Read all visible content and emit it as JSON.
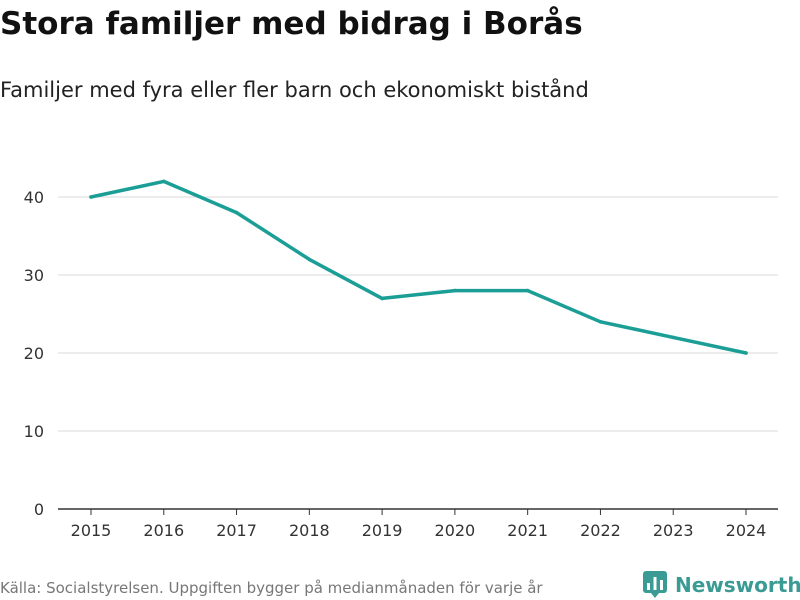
{
  "header": {
    "title": "Stora familjer med bidrag i Borås",
    "subtitle": "Familjer med fyra eller fler barn och ekonomiskt bistånd"
  },
  "footer": {
    "source": "Källa: Socialstyrelsen. Uppgiften bygger på medianmånaden för varje år",
    "brand": "Newsworthy",
    "brand_icon": "bar-chart-speech-bubble-icon"
  },
  "colors": {
    "line": "#1a9e96",
    "grid": "#d9d9d9",
    "axis": "#333333",
    "brand": "#3a9a94"
  },
  "chart_data": {
    "type": "line",
    "title": "Stora familjer med bidrag i Borås",
    "subtitle": "Familjer med fyra eller fler barn och ekonomiskt bistånd",
    "xlabel": "",
    "ylabel": "",
    "x": [
      "2015",
      "2016",
      "2017",
      "2018",
      "2019",
      "2020",
      "2021",
      "2022",
      "2023",
      "2024"
    ],
    "series": [
      {
        "name": "Familjer",
        "values": [
          40,
          42,
          38,
          32,
          27,
          28,
          28,
          24,
          22,
          20
        ]
      }
    ],
    "ylim": [
      0,
      50
    ],
    "yticks": [
      0,
      10,
      20,
      30,
      40
    ],
    "grid": true,
    "legend": "none"
  }
}
